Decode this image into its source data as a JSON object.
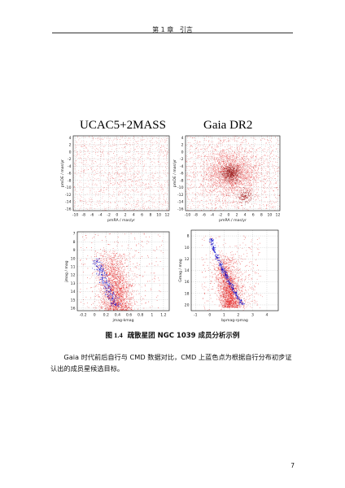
{
  "header": {
    "chapter": "第 1 章",
    "section": "引言"
  },
  "figure": {
    "column_titles": [
      "UCAC5+2MASS",
      "Gaia DR2"
    ],
    "caption_label": "图 1.4",
    "caption_text": "疏散星团 NGC 1039 成员分析示例"
  },
  "chart_data": [
    {
      "type": "scatter",
      "panel": "UCAC5+2MASS proper motion",
      "xlabel": "pmRA / mas/yr",
      "ylabel": "pmDE / mas/yr",
      "xticks": [
        -10,
        -8,
        -6,
        -4,
        -2,
        0,
        2,
        4,
        6,
        8,
        10,
        12
      ],
      "yticks": [
        4,
        2,
        0,
        -2,
        -4,
        -6,
        -8,
        -10,
        -12,
        -14,
        -16
      ],
      "xlim": [
        -10.5,
        12.5
      ],
      "ylim": [
        -16.5,
        4.5
      ],
      "center": [
        1,
        -6
      ],
      "color": "#e00000",
      "highlight_color": "#0000cc"
    },
    {
      "type": "scatter",
      "panel": "Gaia DR2 proper motion",
      "xlabel": "pmRA / mas/yr",
      "ylabel": "pmDE / mas/yr",
      "xticks": [
        -10,
        -8,
        -6,
        -4,
        -2,
        0,
        2,
        4,
        6,
        8,
        10,
        12
      ],
      "yticks": [
        4,
        2,
        0,
        -2,
        -4,
        -6,
        -8,
        -10,
        -12,
        -14,
        -16
      ],
      "xlim": [
        -10.5,
        12.5
      ],
      "ylim": [
        -16.5,
        4.5
      ],
      "center": [
        0.5,
        -6
      ],
      "color": "#e00000",
      "highlight_color": "#0000cc"
    },
    {
      "type": "scatter",
      "panel": "UCAC5+2MASS CMD",
      "xlabel": "jmag-kmag",
      "ylabel": "jmag / mag",
      "xticks": [
        -0.2,
        0,
        0.2,
        0.4,
        0.6,
        0.8,
        1.0,
        1.2
      ],
      "yticks": [
        7,
        8,
        9,
        10,
        11,
        12,
        13,
        14,
        15,
        16
      ],
      "xlim": [
        -0.3,
        1.3
      ],
      "ylim": [
        16.3,
        6.8
      ],
      "color": "#e00000",
      "highlight_color": "#0000cc"
    },
    {
      "type": "scatter",
      "panel": "Gaia DR2 CMD",
      "xlabel": "bpmag-rpmag",
      "ylabel": "Gmag / mag",
      "xticks": [
        -1,
        0,
        1,
        2,
        3,
        4
      ],
      "yticks": [
        8,
        10,
        12,
        14,
        16,
        18,
        20
      ],
      "xlim": [
        -1.3,
        4.8
      ],
      "ylim": [
        21,
        7
      ],
      "color": "#e00000",
      "highlight_color": "#0000cc"
    }
  ],
  "body": {
    "paragraph": "Gaia 时代前后自行与 CMD 数据对比，CMD 上蓝色点为根据自行分布初步证认出的成员星候选目标。"
  },
  "page_number": "7"
}
